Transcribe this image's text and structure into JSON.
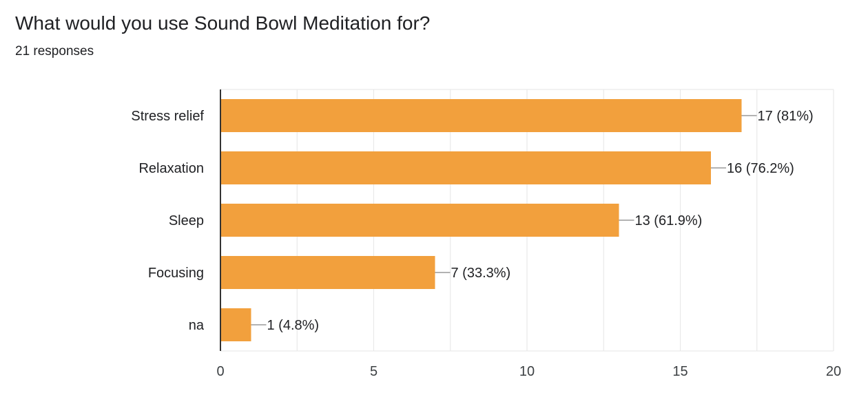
{
  "title": "What would you use Sound Bowl Meditation for?",
  "subtitle": "21 responses",
  "colors": {
    "bar": "#F2A03D",
    "grid": "#e6e6e6",
    "axis": "#333333",
    "leader": "#999999"
  },
  "chart_data": {
    "type": "bar",
    "orientation": "horizontal",
    "categories": [
      "Stress relief",
      "Relaxation",
      "Sleep",
      "Focusing",
      "na"
    ],
    "values": [
      17,
      16,
      13,
      7,
      1
    ],
    "data_labels": [
      "17 (81%)",
      "16 (76.2%)",
      "13 (61.9%)",
      "7 (33.3%)",
      "1 (4.8%)"
    ],
    "xlim": [
      0,
      20
    ],
    "x_ticks": [
      0,
      5,
      10,
      15,
      20
    ],
    "grid": true
  }
}
